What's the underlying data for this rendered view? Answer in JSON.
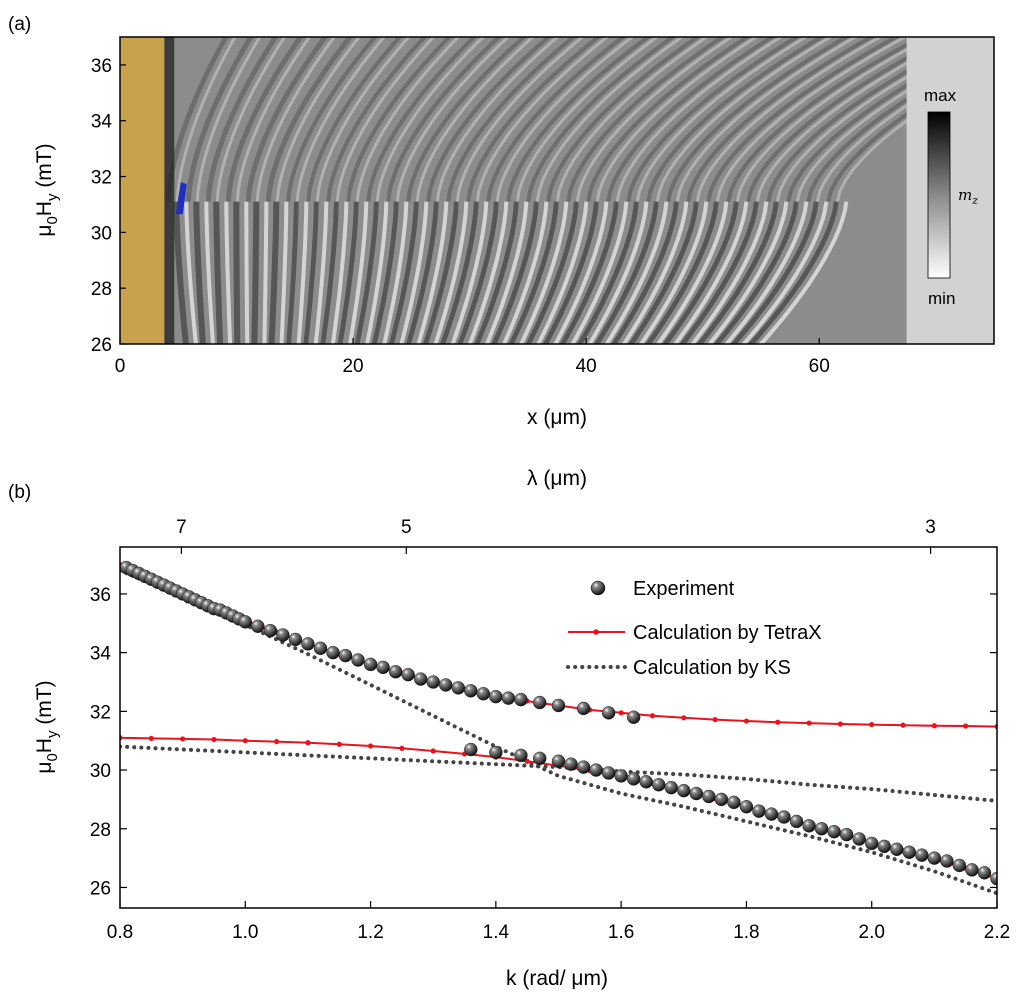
{
  "chart_data": [
    {
      "panel": "(a)",
      "type": "heatmap",
      "xlabel": "x (μm)",
      "ylabel_main": "μ",
      "ylabel_sub1": "0",
      "ylabel_mid": "H",
      "ylabel_sub2": "y",
      "ylabel_tail": " (mT)",
      "xlim": [
        0,
        75
      ],
      "ylim": [
        26,
        37
      ],
      "xticks": [
        0,
        20,
        40,
        60
      ],
      "yticks": [
        26,
        28,
        30,
        32,
        34,
        36
      ],
      "antenna_region_x": [
        0,
        3.8
      ],
      "saturated_region_x": [
        67.5,
        75
      ],
      "colors": {
        "antenna": "#c9a24e",
        "marker": "#1f2fbf"
      },
      "colorbar": {
        "max_label": "max",
        "min_label": "min",
        "quantity": "m",
        "quantity_sub": "z"
      }
    },
    {
      "panel": "(b)",
      "type": "scatter",
      "xlabel": "k (rad/ μm)",
      "top_xlabel": "λ (μm)",
      "ylabel_main": "μ",
      "ylabel_sub1": "0",
      "ylabel_mid": "H",
      "ylabel_sub2": "y",
      "ylabel_tail": " (mT)",
      "xlim": [
        0.8,
        2.2
      ],
      "ylim": [
        25.3,
        37.6
      ],
      "xticks": [
        "0.8",
        "1.0",
        "1.2",
        "1.4",
        "1.6",
        "1.8",
        "2.0",
        "2.2"
      ],
      "yticks": [
        "26",
        "28",
        "30",
        "32",
        "34",
        "36"
      ],
      "top_ticks": [
        {
          "label": "7",
          "k": 0.898
        },
        {
          "label": "5",
          "k": 1.257
        },
        {
          "label": "3",
          "k": 2.094
        }
      ],
      "legend": {
        "experiment": "Experiment",
        "tetrax": "Calculation by TetraX",
        "ks": "Calculation by KS"
      },
      "colors": {
        "tetrax": "#e8141b",
        "ks": "#444444",
        "experiment": "#222222"
      },
      "series": [
        {
          "name": "Experiment (upper branch)",
          "x": [
            0.81,
            0.82,
            0.83,
            0.84,
            0.85,
            0.86,
            0.87,
            0.88,
            0.89,
            0.9,
            0.91,
            0.92,
            0.93,
            0.94,
            0.95,
            0.96,
            0.97,
            0.98,
            0.99,
            1.0,
            1.02,
            1.04,
            1.06,
            1.08,
            1.1,
            1.12,
            1.14,
            1.16,
            1.18,
            1.2,
            1.22,
            1.24,
            1.26,
            1.28,
            1.3,
            1.32,
            1.34,
            1.36,
            1.38,
            1.4,
            1.42,
            1.44,
            1.47,
            1.5,
            1.54,
            1.58,
            1.62
          ],
          "y": [
            36.9,
            36.8,
            36.7,
            36.6,
            36.5,
            36.4,
            36.3,
            36.2,
            36.1,
            36.0,
            35.9,
            35.8,
            35.7,
            35.6,
            35.5,
            35.45,
            35.35,
            35.25,
            35.15,
            35.05,
            34.9,
            34.75,
            34.6,
            34.45,
            34.3,
            34.15,
            34.0,
            33.9,
            33.75,
            33.6,
            33.5,
            33.35,
            33.25,
            33.1,
            33.0,
            32.9,
            32.8,
            32.7,
            32.6,
            32.5,
            32.45,
            32.4,
            32.3,
            32.2,
            32.1,
            31.95,
            31.8
          ]
        },
        {
          "name": "Experiment (lower branch)",
          "x": [
            1.36,
            1.4,
            1.44,
            1.47,
            1.5,
            1.52,
            1.54,
            1.56,
            1.58,
            1.6,
            1.62,
            1.64,
            1.66,
            1.68,
            1.7,
            1.72,
            1.74,
            1.76,
            1.78,
            1.8,
            1.82,
            1.84,
            1.86,
            1.88,
            1.9,
            1.92,
            1.94,
            1.96,
            1.98,
            2.0,
            2.02,
            2.04,
            2.06,
            2.08,
            2.1,
            2.12,
            2.14,
            2.16,
            2.18,
            2.2
          ],
          "y": [
            30.7,
            30.6,
            30.5,
            30.4,
            30.3,
            30.2,
            30.1,
            30.0,
            29.9,
            29.8,
            29.7,
            29.6,
            29.5,
            29.4,
            29.3,
            29.2,
            29.1,
            29.0,
            28.9,
            28.75,
            28.6,
            28.5,
            28.4,
            28.25,
            28.1,
            28.0,
            27.9,
            27.8,
            27.65,
            27.5,
            27.4,
            27.3,
            27.2,
            27.1,
            27.0,
            26.9,
            26.75,
            26.6,
            26.5,
            26.3
          ]
        },
        {
          "name": "Calculation by TetraX (upper)",
          "x": [
            0.8,
            0.85,
            0.9,
            0.95,
            1.0,
            1.05,
            1.1,
            1.15,
            1.2,
            1.25,
            1.3,
            1.35,
            1.4,
            1.45,
            1.5,
            1.55,
            1.6,
            1.65,
            1.7,
            1.75,
            1.8,
            1.85,
            1.9,
            1.95,
            2.0,
            2.05,
            2.1,
            2.15,
            2.2
          ],
          "y": [
            37.0,
            36.5,
            36.0,
            35.55,
            35.1,
            34.7,
            34.3,
            33.95,
            33.6,
            33.3,
            33.0,
            32.75,
            32.55,
            32.35,
            32.2,
            32.05,
            31.95,
            31.85,
            31.78,
            31.72,
            31.67,
            31.63,
            31.6,
            31.57,
            31.55,
            31.53,
            31.51,
            31.5,
            31.48
          ]
        },
        {
          "name": "Calculation by TetraX (lower)",
          "x": [
            0.8,
            0.85,
            0.9,
            0.95,
            1.0,
            1.05,
            1.1,
            1.15,
            1.2,
            1.25,
            1.3,
            1.35,
            1.4,
            1.45,
            1.5,
            1.55,
            1.6,
            1.65,
            1.7,
            1.75,
            1.8,
            1.85,
            1.9,
            1.95,
            2.0,
            2.05,
            2.1,
            2.15,
            2.2
          ],
          "y": [
            31.1,
            31.08,
            31.06,
            31.04,
            31.0,
            30.97,
            30.93,
            30.88,
            30.82,
            30.74,
            30.65,
            30.55,
            30.44,
            30.3,
            30.15,
            29.98,
            29.78,
            29.55,
            29.3,
            29.03,
            28.75,
            28.45,
            28.15,
            27.85,
            27.55,
            27.25,
            26.95,
            26.65,
            26.3
          ]
        },
        {
          "name": "Calculation by KS (branch 1)",
          "x": [
            0.8,
            0.9,
            1.0,
            1.1,
            1.2,
            1.3,
            1.4,
            1.5,
            1.6,
            1.7,
            1.8,
            1.9,
            2.0,
            2.1,
            2.2
          ],
          "y": [
            36.8,
            35.9,
            34.95,
            33.95,
            32.9,
            31.85,
            30.8,
            29.8,
            29.2,
            28.75,
            28.25,
            27.75,
            27.2,
            26.55,
            25.8
          ]
        },
        {
          "name": "Calculation by KS (branch 2)",
          "x": [
            0.8,
            0.9,
            1.0,
            1.1,
            1.2,
            1.3,
            1.4,
            1.5,
            1.6,
            1.7,
            1.8,
            1.9,
            2.0,
            2.1,
            2.2
          ],
          "y": [
            30.8,
            30.7,
            30.6,
            30.5,
            30.4,
            30.3,
            30.2,
            30.1,
            29.95,
            29.85,
            29.7,
            29.5,
            29.35,
            29.15,
            28.95
          ]
        }
      ]
    }
  ]
}
